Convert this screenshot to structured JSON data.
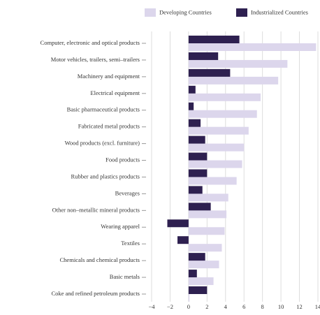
{
  "chart_data": {
    "type": "barh",
    "categories": [
      "Computer, electronic and optical products",
      "Motor vehicles, trailers, semi–trailers",
      "Machinery and equipment",
      "Electrical equipment",
      "Basic pharmaceutical products",
      "Fabricated metal products",
      "Wood products (excl. furniture)",
      "Food products",
      "Rubber and plastics products",
      "Beverages",
      "Other non–metallic mineral products",
      "Wearing apparel",
      "Textiles",
      "Chemicals and chemical products",
      "Basic metals",
      "Coke and refined petroleum products"
    ],
    "series": [
      {
        "name": "Developing Countries",
        "color": "#dcd6ec",
        "values": [
          13.8,
          10.7,
          9.7,
          7.8,
          7.4,
          6.5,
          6.0,
          5.8,
          5.2,
          4.3,
          4.1,
          3.9,
          3.6,
          3.3,
          2.7,
          0.1
        ]
      },
      {
        "name": "Industrialized Countries",
        "color": "#2e2050",
        "values": [
          5.5,
          3.2,
          4.5,
          0.75,
          0.55,
          1.3,
          1.8,
          2.0,
          2.0,
          1.5,
          2.4,
          -2.3,
          -1.2,
          1.8,
          0.9,
          2.0
        ]
      }
    ],
    "xlim": [
      -4,
      14
    ],
    "xticks": [
      {
        "value": -4,
        "label": "−4"
      },
      {
        "value": -2,
        "label": "−2"
      },
      0,
      2,
      4,
      6,
      8,
      10,
      12,
      14
    ],
    "grid": true
  }
}
